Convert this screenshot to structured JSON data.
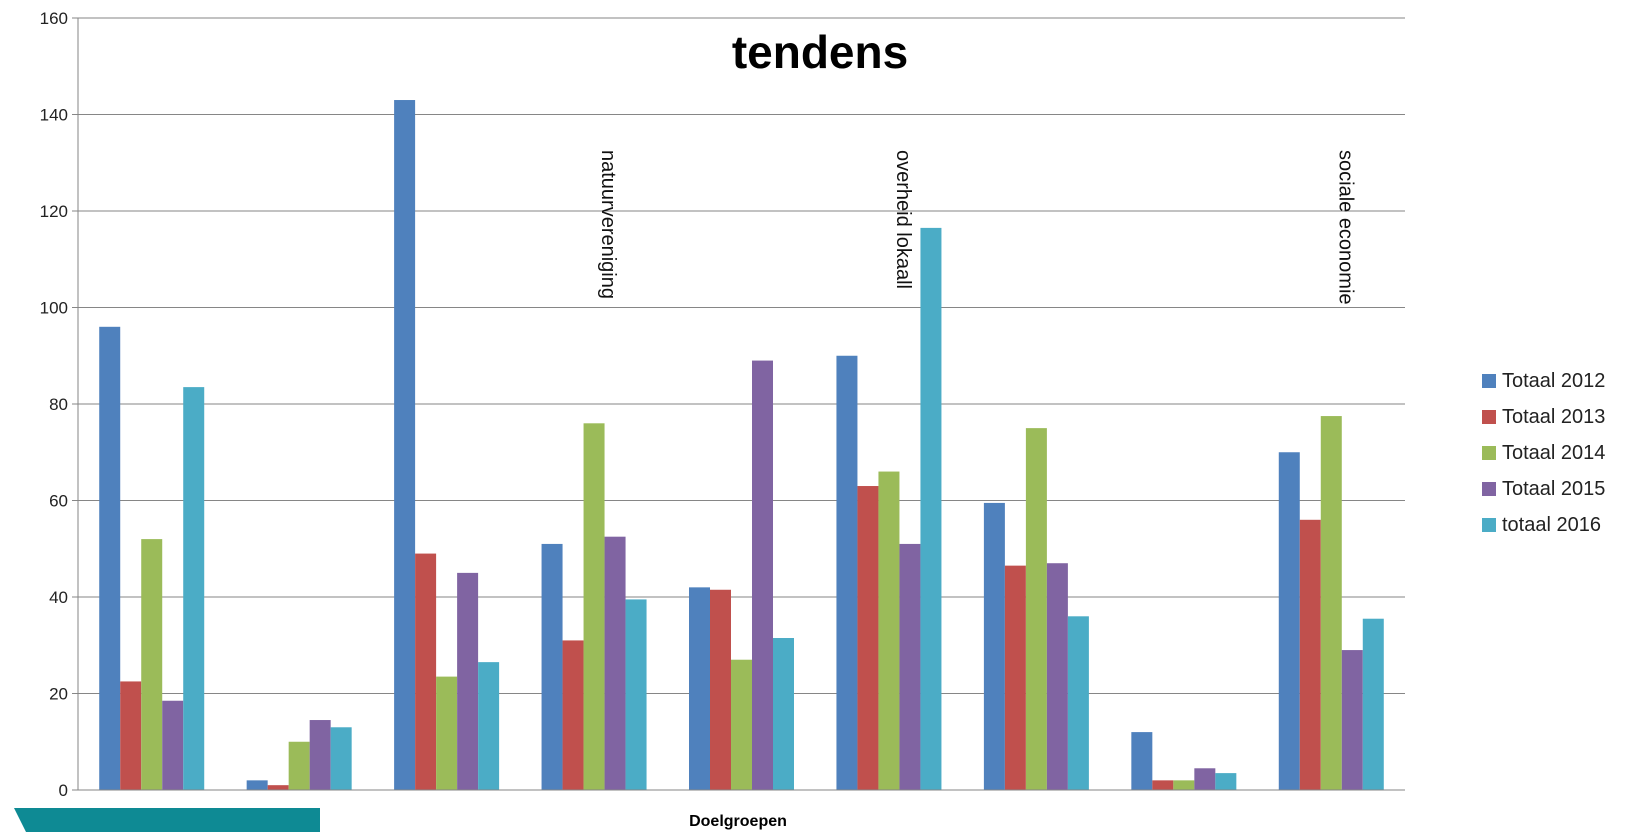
{
  "chart_data": {
    "type": "bar",
    "title": "tendens",
    "xlabel": "Doelgroepen",
    "ylabel": "",
    "ylim": [
      0,
      160
    ],
    "yticks": [
      "0",
      "20",
      "40",
      "60",
      "80",
      "100",
      "120",
      "140",
      "160"
    ],
    "categories": [
      "",
      "",
      "",
      "natuurvereniging",
      "",
      "overheid lokaall",
      "",
      "",
      "sociale economie"
    ],
    "series": [
      {
        "name": "Totaal 2012",
        "color": "#4f81bd",
        "values": [
          96,
          2,
          143,
          51,
          42,
          90,
          59.5,
          12,
          70
        ]
      },
      {
        "name": "Totaal 2013",
        "color": "#c0504d",
        "values": [
          22.5,
          1,
          49,
          31,
          41.5,
          63,
          46.5,
          2,
          56
        ]
      },
      {
        "name": "Totaal 2014",
        "color": "#9bbb59",
        "values": [
          52,
          10,
          23.5,
          76,
          27,
          66,
          75,
          2,
          77.5
        ]
      },
      {
        "name": "Totaal 2015",
        "color": "#8064a2",
        "values": [
          18.5,
          14.5,
          45,
          52.5,
          89,
          51,
          47,
          4.5,
          29
        ]
      },
      {
        "name": "totaal 2016",
        "color": "#4bacc6",
        "values": [
          83.5,
          13,
          26.5,
          39.5,
          31.5,
          116.5,
          36,
          3.5,
          35.5
        ]
      }
    ],
    "grid": true,
    "legend": "right"
  },
  "decoration": {
    "color": "#0e8a94"
  }
}
